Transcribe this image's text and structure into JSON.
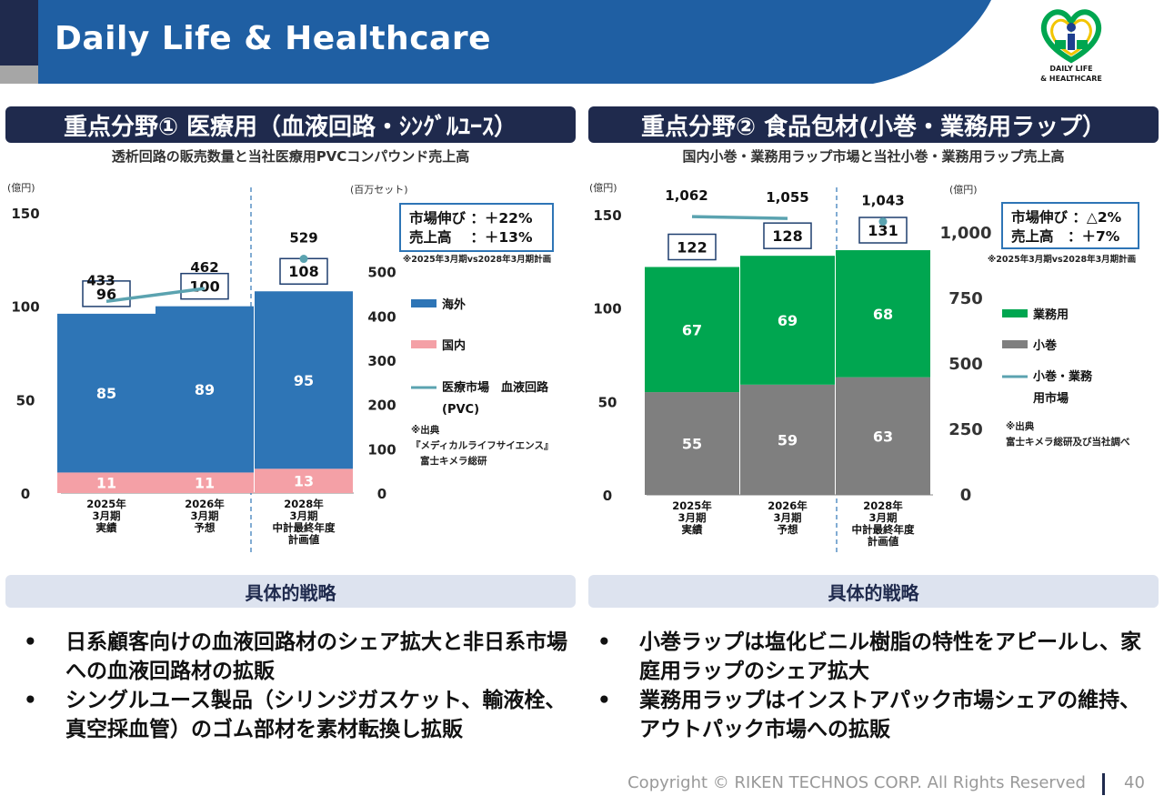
{
  "header": {
    "title": "Daily Life & Healthcare",
    "logo_text_line1": "DAILY LIFE",
    "logo_text_line2": "& HEALTHCARE"
  },
  "left": {
    "section_title": "重点分野① 医療用（血液回路・ｼﾝｸﾞﾙﾕｰｽ）",
    "subtitle": "透析回路の販売数量と当社医療用PVCコンパウンド売上高",
    "strategy_title": "具体的戦略",
    "bullets": [
      "日系顧客向けの血液回路材のシェア拡大と非日系市場への血液回路材の拡販",
      "シングルユース製品（シリンジガスケット、輸液栓、真空採血管）のゴム部材を素材転換し拡販"
    ]
  },
  "right": {
    "section_title": "重点分野② 食品包材(小巻・業務用ラップ）",
    "subtitle": "国内小巻・業務用ラップ市場と当社小巻・業務用ラップ売上高",
    "strategy_title": "具体的戦略",
    "bullets": [
      "小巻ラップは塩化ビニル樹脂の特性をアピールし、家庭用ラップのシェア拡大",
      "業務用ラップはインストアパック市場シェアの維持、アウトパック市場への拡販"
    ]
  },
  "footer": {
    "copyright": "Copyright © RIKEN TECHNOS CORP. All Rights Reserved",
    "page": "40"
  },
  "colors": {
    "header_blue": "#1f5fa3",
    "header_dark": "#1f2a4d",
    "overseas": "#2e75b6",
    "domestic": "#f4a0a6",
    "commercial": "#00a650",
    "small_roll": "#7f7f7f",
    "market_line": "#5ba3b0"
  },
  "chart_data": [
    {
      "type": "bar",
      "stacked": true,
      "categories": [
        [
          "2025年",
          "3月期",
          "実績"
        ],
        [
          "2026年",
          "3月期",
          "予想"
        ],
        [
          "2028年",
          "3月期",
          "中計最終年度",
          "計画値"
        ]
      ],
      "series": [
        {
          "name": "国内",
          "values": [
            11,
            11,
            13
          ],
          "color": "#f4a0a6"
        },
        {
          "name": "海外",
          "values": [
            85,
            89,
            95
          ],
          "color": "#2e75b6"
        }
      ],
      "totals": [
        96,
        100,
        108
      ],
      "line_series": {
        "name": "医療市場　血液回路(PVC)",
        "values": [
          433,
          462,
          529
        ],
        "color": "#5ba3b0"
      },
      "ylabel_left": "(億円)",
      "ylim_left": [
        0,
        150
      ],
      "yticks_left": [
        0,
        50,
        100,
        150
      ],
      "ylabel_right": "(百万セット)",
      "ylim_right": [
        0,
        600
      ],
      "yticks_right": [
        0,
        100,
        200,
        300,
        400,
        500
      ],
      "annotation_box": [
        "市場伸び ：＋22%",
        "売上高　 ：＋13%"
      ],
      "annotation_note": "※2025年3月期vs2028年3月期計画",
      "legend": [
        "海外",
        "国内",
        "医療市場　血液回路",
        "(PVC)"
      ],
      "legend_position": "right",
      "source": [
        "※出典",
        "『メディカルライフサイエンス』",
        "富士キメラ総研"
      ]
    },
    {
      "type": "bar",
      "stacked": true,
      "categories": [
        [
          "2025年",
          "3月期",
          "実績"
        ],
        [
          "2026年",
          "3月期",
          "予想"
        ],
        [
          "2028年",
          "3月期",
          "中計最終年度",
          "計画値"
        ]
      ],
      "series": [
        {
          "name": "小巻",
          "values": [
            55,
            59,
            63
          ],
          "color": "#7f7f7f"
        },
        {
          "name": "業務用",
          "values": [
            67,
            69,
            68
          ],
          "color": "#00a650"
        }
      ],
      "totals": [
        122,
        128,
        131
      ],
      "line_series": {
        "name": "小巻・業務用市場",
        "values": [
          1062,
          1055,
          1043
        ],
        "labels": [
          "1,062",
          "1,055",
          "1,043"
        ],
        "color": "#5ba3b0"
      },
      "ylabel_left": "(億円)",
      "ylim_left": [
        0,
        150
      ],
      "yticks_left": [
        0,
        50,
        100,
        150
      ],
      "ylabel_right": "(億円)",
      "ylim_right": [
        0,
        1000
      ],
      "yticks_right": [
        0,
        250,
        500,
        750,
        1000
      ],
      "ytick_labels_right": [
        "0",
        "250",
        "500",
        "750",
        "1,000"
      ],
      "annotation_box": [
        "市場伸び ：△2%",
        "売上高　：＋7%"
      ],
      "annotation_note": "※2025年3月期vs2028年3月期計画",
      "legend": [
        "業務用",
        "小巻",
        "小巻・業務",
        "用市場"
      ],
      "legend_position": "right",
      "source": [
        "※出典",
        "富士キメラ総研及び当社調べ"
      ]
    }
  ]
}
